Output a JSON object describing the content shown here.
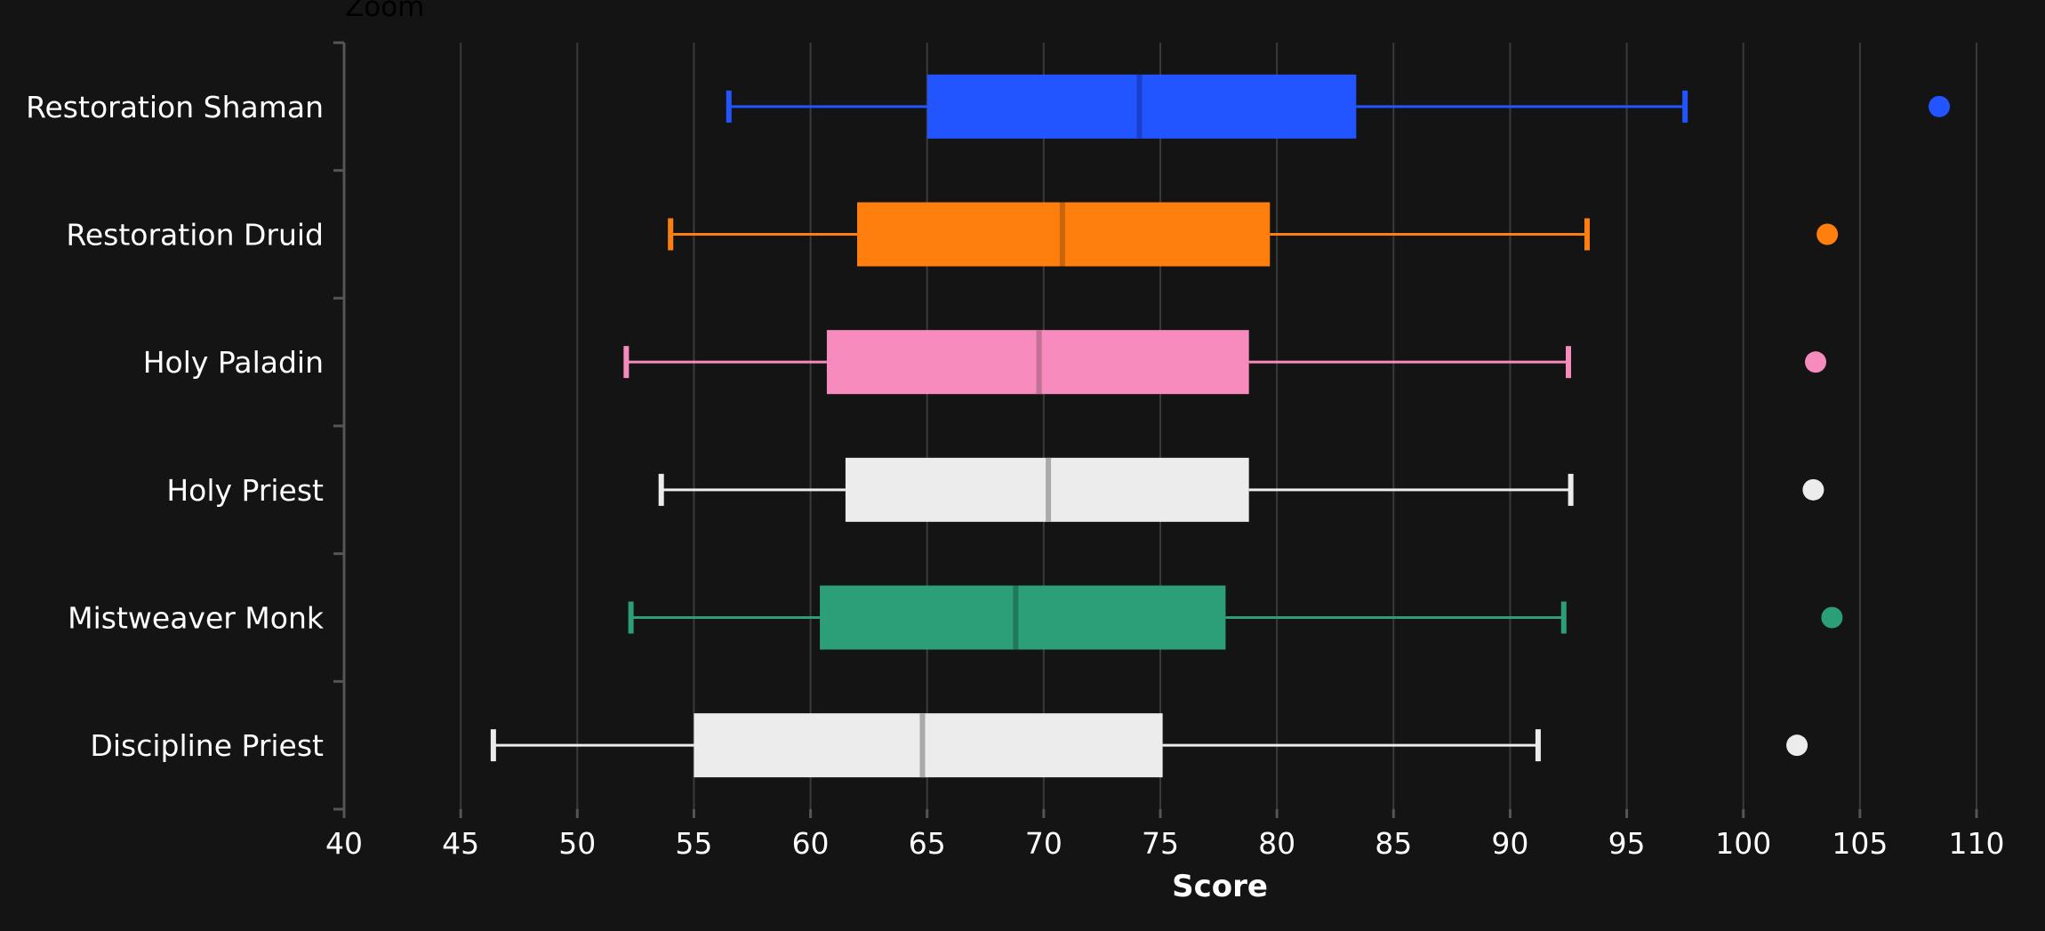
{
  "zoom_label": "Zoom",
  "chart_data": {
    "type": "boxplot",
    "orientation": "horizontal",
    "xlabel": "Score",
    "xlim": [
      40,
      110
    ],
    "xticks": [
      40,
      45,
      50,
      55,
      60,
      65,
      70,
      75,
      80,
      85,
      90,
      95,
      100,
      105,
      110
    ],
    "grid": true,
    "categories": [
      "Restoration Shaman",
      "Restoration Druid",
      "Holy Paladin",
      "Holy Priest",
      "Mistweaver Monk",
      "Discipline Priest"
    ],
    "series": [
      {
        "category": "Restoration Shaman",
        "color": "#2255ff",
        "median_color": "#1a3fcc",
        "whisker_low": 56.5,
        "q1": 65.0,
        "median": 74.1,
        "q3": 83.4,
        "whisker_high": 97.5,
        "outliers": [
          108.4
        ]
      },
      {
        "category": "Restoration Druid",
        "color": "#ff7f0e",
        "median_color": "#c8650c",
        "whisker_low": 54.0,
        "q1": 62.0,
        "median": 70.8,
        "q3": 79.7,
        "whisker_high": 93.3,
        "outliers": [
          103.6
        ]
      },
      {
        "category": "Holy Paladin",
        "color": "#f78bbd",
        "median_color": "#c27093",
        "whisker_low": 52.1,
        "q1": 60.7,
        "median": 69.8,
        "q3": 78.8,
        "whisker_high": 92.5,
        "outliers": [
          103.1
        ]
      },
      {
        "category": "Holy Priest",
        "color": "#ececec",
        "median_color": "#aaaaaa",
        "whisker_low": 53.6,
        "q1": 61.5,
        "median": 70.2,
        "q3": 78.8,
        "whisker_high": 92.6,
        "outliers": [
          103.0
        ]
      },
      {
        "category": "Mistweaver Monk",
        "color": "#2c9e78",
        "median_color": "#1f7a5c",
        "whisker_low": 52.3,
        "q1": 60.4,
        "median": 68.8,
        "q3": 77.8,
        "whisker_high": 92.3,
        "outliers": [
          103.8
        ]
      },
      {
        "category": "Discipline Priest",
        "color": "#ececec",
        "median_color": "#aaaaaa",
        "whisker_low": 46.4,
        "q1": 55.0,
        "median": 64.8,
        "q3": 75.1,
        "whisker_high": 91.2,
        "outliers": [
          102.3
        ]
      }
    ]
  }
}
